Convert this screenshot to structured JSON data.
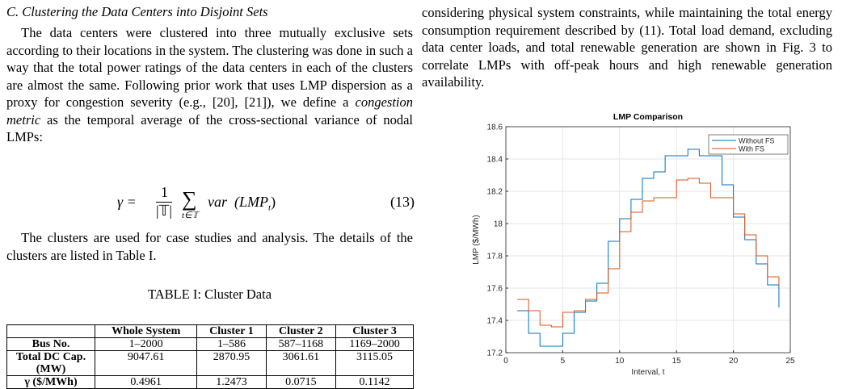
{
  "left": {
    "heading": "C. Clustering the Data Centers into Disjoint Sets",
    "paragraph1": [
      "The data centers were clustered into three mutually exclusive sets according to their locations in the system. The clustering was done in such a way that the total power ratings of the data centers in each of the clusters are almost the same. Following prior work that uses LMP dispersion as a proxy for congestion severity (e.g., [20], [21]), we define a ",
      "congestion metric",
      " as the temporal average of the cross-sectional variance of nodal LMPs:"
    ],
    "equation": {
      "lhs": "γ =",
      "numerator": "1",
      "denominator": "|𝕋|",
      "sum": "∑",
      "sum_sub": "t∈𝕋",
      "func": "var",
      "arg": "(LMP",
      "arg_sub": "t",
      "close": ")",
      "number": "(13)"
    },
    "paragraph2": "The clusters are used for case studies and analysis. The details of the clusters are listed in Table I.",
    "table_caption": "TABLE I: Cluster Data",
    "table": {
      "header": [
        "Whole System",
        "Cluster 1",
        "Cluster 2",
        "Cluster 3"
      ],
      "rows": [
        [
          "Bus No.",
          "1–2000",
          "1–586",
          "587–1168",
          "1169–2000"
        ],
        [
          "Total DC Cap. (MW)",
          "9047.61",
          "2870.95",
          "3061.61",
          "3115.05"
        ],
        [
          "γ ($/MWh)",
          "0.4961",
          "1.2473",
          "0.0715",
          "0.1142"
        ]
      ]
    }
  },
  "right": {
    "paragraph": "considering physical system constraints, while maintaining the total energy consumption requirement described by (11). Total load demand, excluding data center loads, and total renewable generation are shown in Fig. 3 to correlate LMPs with off-peak hours and high renewable generation availability."
  },
  "chart_data": {
    "type": "stairs",
    "title": "LMP Comparison",
    "x_label": "Interval, t",
    "y_label": "LMP ($/MWh)",
    "x": [
      1,
      2,
      3,
      4,
      5,
      6,
      7,
      8,
      9,
      10,
      11,
      12,
      13,
      14,
      15,
      16,
      17,
      18,
      19,
      20,
      21,
      22,
      23,
      24
    ],
    "series": [
      {
        "name": "Without FS",
        "color": "#0072bd",
        "values": [
          17.46,
          17.32,
          17.24,
          17.24,
          17.32,
          17.45,
          17.52,
          17.63,
          17.89,
          18.03,
          18.15,
          18.28,
          18.32,
          18.42,
          18.42,
          18.46,
          18.42,
          18.42,
          18.24,
          18.04,
          17.9,
          17.75,
          17.62,
          17.48
        ]
      },
      {
        "name": "With FS",
        "color": "#d95319",
        "values": [
          17.53,
          17.46,
          17.37,
          17.36,
          17.45,
          17.46,
          17.53,
          17.57,
          17.72,
          17.95,
          18.07,
          18.14,
          18.16,
          18.16,
          18.27,
          18.28,
          18.25,
          18.16,
          18.16,
          18.06,
          17.93,
          17.8,
          17.67,
          17.62
        ]
      }
    ],
    "xlim": [
      0,
      25
    ],
    "xticks": [
      0,
      5,
      10,
      15,
      20,
      25
    ],
    "ylim": [
      17.2,
      18.6
    ],
    "yticks": [
      17.2,
      17.4,
      17.6,
      17.8,
      18,
      18.2,
      18.4,
      18.6
    ],
    "grid": true,
    "legend": "northeast"
  }
}
